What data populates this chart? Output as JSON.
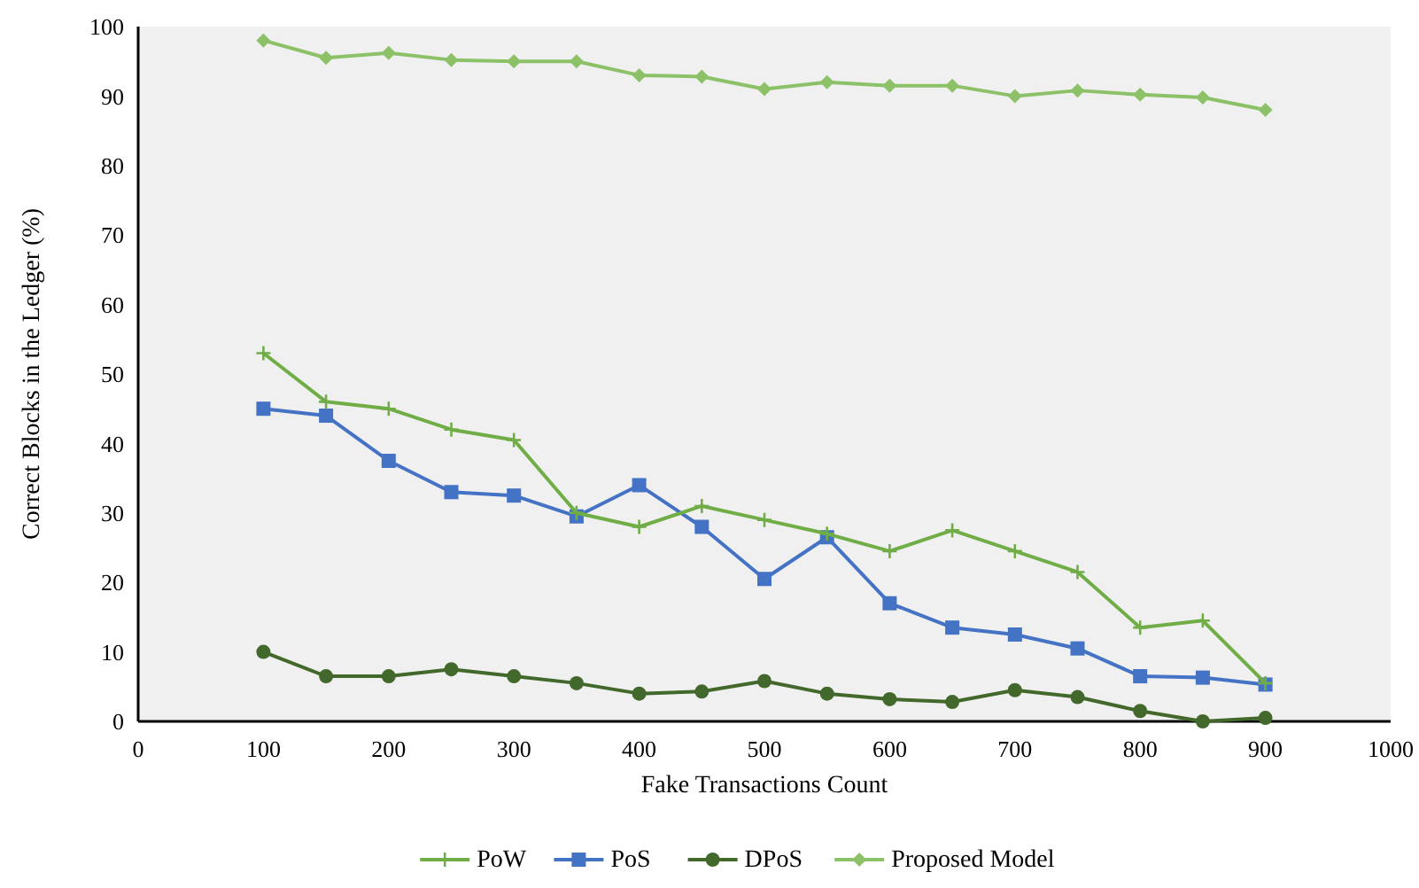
{
  "chart_data": {
    "type": "line",
    "xlabel": "Fake Transactions Count",
    "ylabel": "Correct Blocks in the Ledger (%)",
    "x": [
      100,
      150,
      200,
      250,
      300,
      350,
      400,
      450,
      500,
      550,
      600,
      650,
      700,
      750,
      800,
      850,
      900
    ],
    "xlim": [
      0,
      1000
    ],
    "xticks": [
      0,
      100,
      200,
      300,
      400,
      500,
      600,
      700,
      800,
      900,
      1000
    ],
    "ylim": [
      0,
      100
    ],
    "yticks": [
      0,
      10,
      20,
      30,
      40,
      50,
      60,
      70,
      80,
      90,
      100
    ],
    "grid": false,
    "legend": "bottom",
    "series": [
      {
        "name": "PoW",
        "color": "#70ad47",
        "marker": "cross",
        "values": [
          53,
          46,
          45,
          42,
          40.5,
          30,
          28,
          31,
          29,
          27,
          24.5,
          27.5,
          24.5,
          21.5,
          13.5,
          14.5,
          5.5
        ]
      },
      {
        "name": "PoS",
        "color": "#4472c4",
        "marker": "square",
        "values": [
          45,
          44,
          37.5,
          33,
          32.5,
          29.5,
          34,
          28,
          20.5,
          26.5,
          17,
          13.5,
          12.5,
          10.5,
          6.5,
          6.3,
          5.3
        ]
      },
      {
        "name": "DPoS",
        "color": "#43682b",
        "marker": "circle",
        "values": [
          10,
          6.5,
          6.5,
          7.5,
          6.5,
          5.5,
          4,
          4.3,
          5.8,
          4,
          3.2,
          2.8,
          4.5,
          3.5,
          1.5,
          0,
          0.5
        ]
      },
      {
        "name": "Proposed Model",
        "color": "#8cc168",
        "marker": "diamond",
        "values": [
          98,
          95.5,
          96.2,
          95.2,
          95,
          95,
          93,
          92.8,
          91,
          92,
          91.5,
          91.5,
          90,
          90.8,
          90.2,
          89.8,
          88
        ]
      }
    ]
  }
}
